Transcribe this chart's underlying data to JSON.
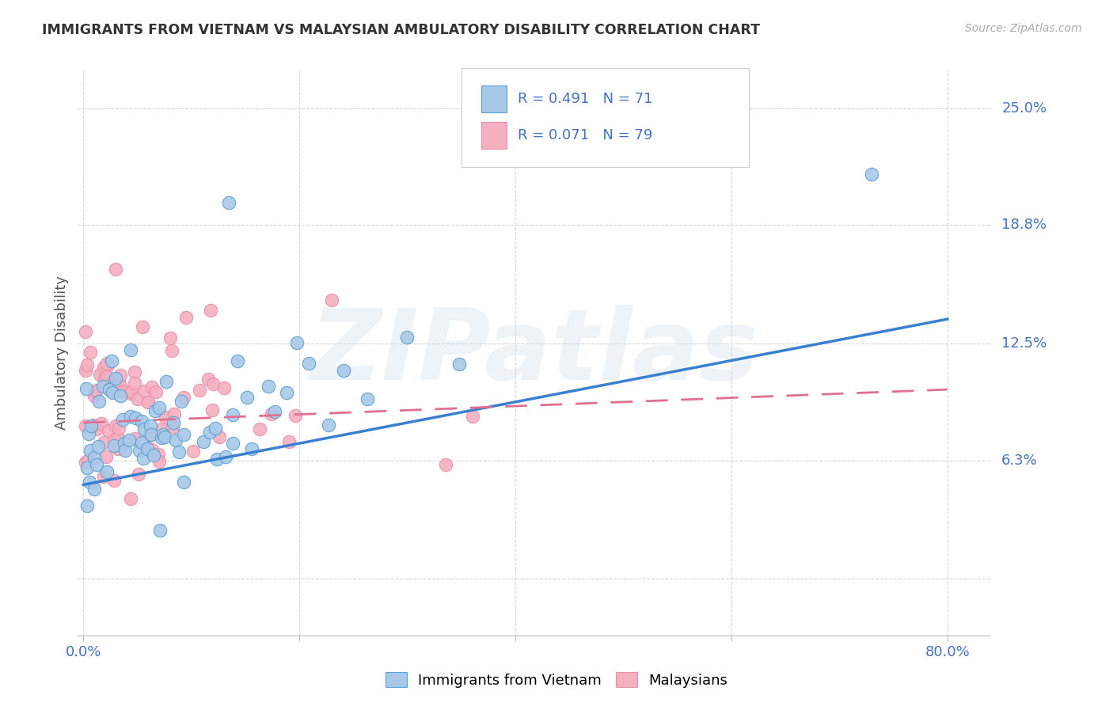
{
  "title": "IMMIGRANTS FROM VIETNAM VS MALAYSIAN AMBULATORY DISABILITY CORRELATION CHART",
  "source": "Source: ZipAtlas.com",
  "ylabel": "Ambulatory Disability",
  "yticks": [
    0.0,
    0.063,
    0.125,
    0.188,
    0.25
  ],
  "ytick_labels": [
    "",
    "6.3%",
    "12.5%",
    "18.8%",
    "25.0%"
  ],
  "xlim": [
    -0.005,
    0.84
  ],
  "ylim": [
    -0.03,
    0.27
  ],
  "legend_bottom": [
    "Immigrants from Vietnam",
    "Malaysians"
  ],
  "watermark": "ZIPatlas",
  "blue_color": "#A8C8E8",
  "pink_color": "#F4B0C0",
  "blue_edge": "#5A9FD4",
  "pink_edge": "#E890A8",
  "trend_blue": "#3A7FD0",
  "trend_pink": "#E07090",
  "axis_label_color": "#4472C4",
  "background": "#FFFFFF",
  "grid_color": "#D8D8D8",
  "R_blue": 0.491,
  "N_blue": 71,
  "R_pink": 0.071,
  "N_pink": 79,
  "blue_intercept": 0.05,
  "blue_slope": 0.11,
  "pink_intercept": 0.083,
  "pink_slope": 0.022
}
